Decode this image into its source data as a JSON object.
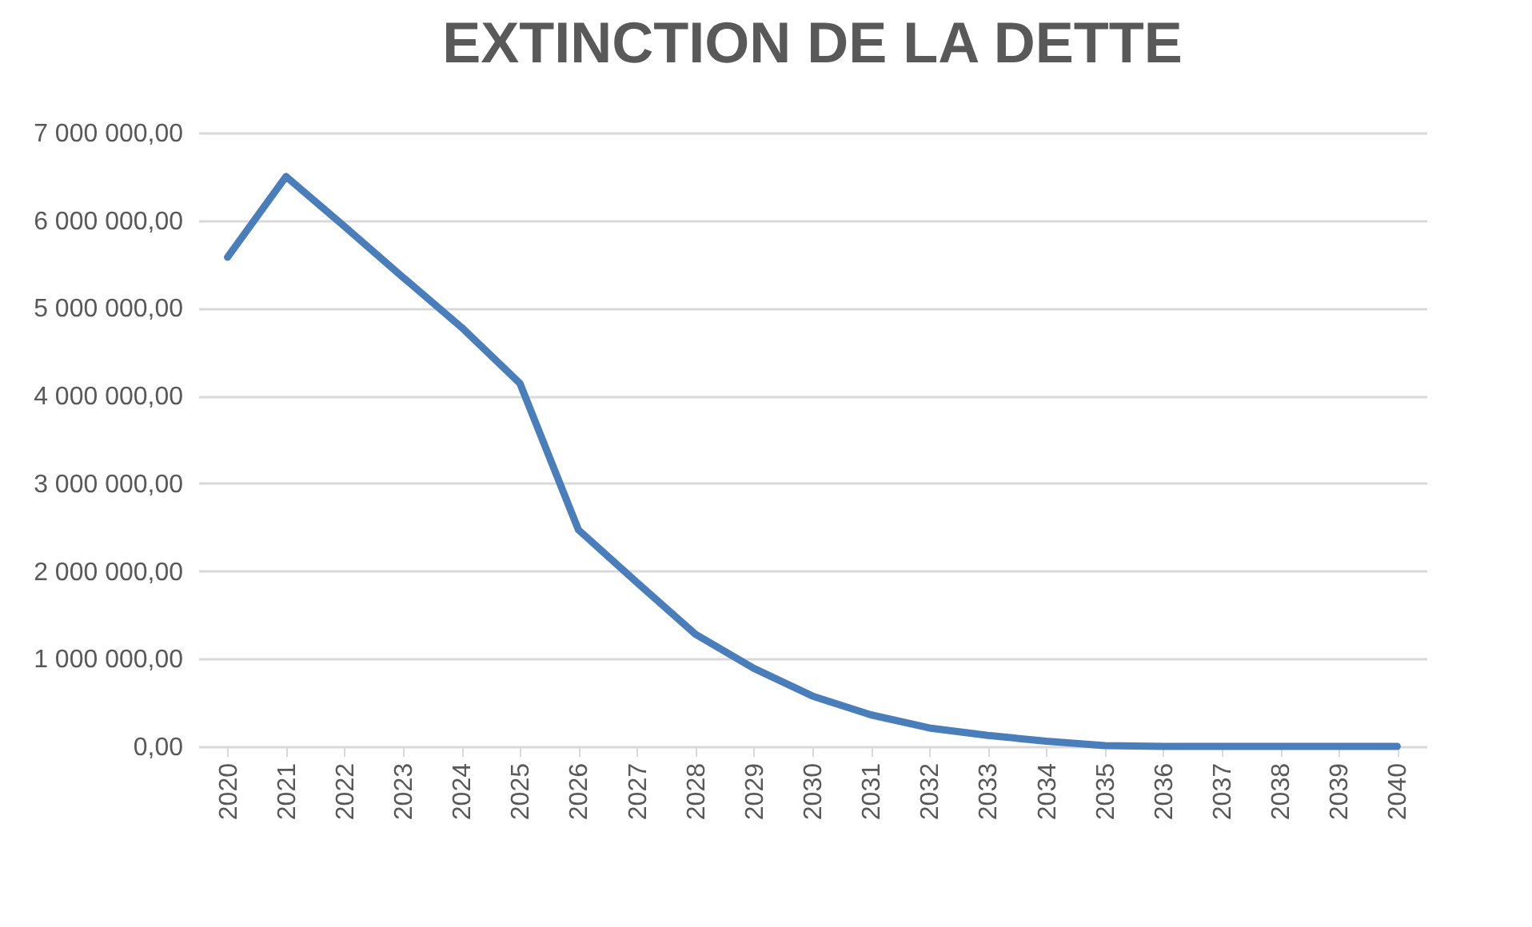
{
  "chart_data": {
    "type": "line",
    "title": "EXTINCTION DE LA DETTE",
    "categories": [
      "2020",
      "2021",
      "2022",
      "2023",
      "2024",
      "2025",
      "2026",
      "2027",
      "2028",
      "2029",
      "2030",
      "2031",
      "2032",
      "2033",
      "2034",
      "2035",
      "2036",
      "2037",
      "2038",
      "2039",
      "2040"
    ],
    "series": [
      {
        "color": "#4a7ebb",
        "values": [
          5580000,
          6500000,
          5930000,
          5350000,
          4780000,
          4140000,
          2470000,
          1870000,
          1280000,
          890000,
          575000,
          360000,
          210000,
          125000,
          60000,
          10000,
          0,
          0,
          0,
          0,
          0
        ]
      }
    ],
    "ylim": [
      0,
      7000000
    ],
    "yticks": [
      {
        "value": 0,
        "label": "0,00"
      },
      {
        "value": 1000000,
        "label": "1 000 000,00"
      },
      {
        "value": 2000000,
        "label": "2 000 000,00"
      },
      {
        "value": 3000000,
        "label": "3 000 000,00"
      },
      {
        "value": 4000000,
        "label": "4 000 000,00"
      },
      {
        "value": 5000000,
        "label": "5 000 000,00"
      },
      {
        "value": 6000000,
        "label": "6 000 000,00"
      },
      {
        "value": 7000000,
        "label": "7 000 000,00"
      }
    ],
    "grid": "y",
    "legend": false,
    "marker": "none",
    "line_style": "solid"
  }
}
